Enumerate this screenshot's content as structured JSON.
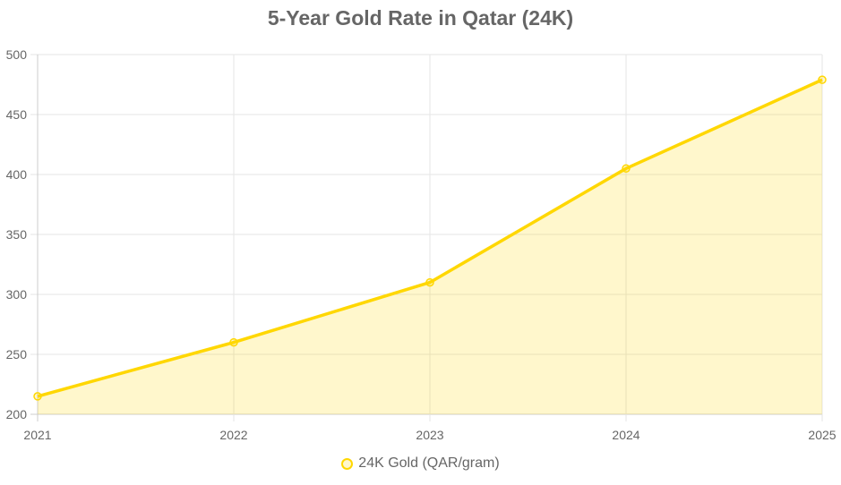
{
  "chart_data": {
    "type": "line",
    "title": "5-Year Gold Rate in Qatar (24K)",
    "categories": [
      "2021",
      "2022",
      "2023",
      "2024",
      "2025"
    ],
    "series": [
      {
        "name": "24K Gold (QAR/gram)",
        "values": [
          215,
          260,
          310,
          405,
          479
        ],
        "color": "#FFD700",
        "fill": true
      }
    ],
    "xlabel": "",
    "ylabel": "",
    "ylim": [
      200,
      500
    ],
    "yticks": [
      200,
      250,
      300,
      350,
      400,
      450,
      500
    ],
    "grid": true,
    "legend_position": "bottom"
  },
  "colors": {
    "line": "#FFD700",
    "fill": "rgba(255,215,0,0.2)",
    "grid": "#e5e5e5",
    "text": "#666666"
  }
}
